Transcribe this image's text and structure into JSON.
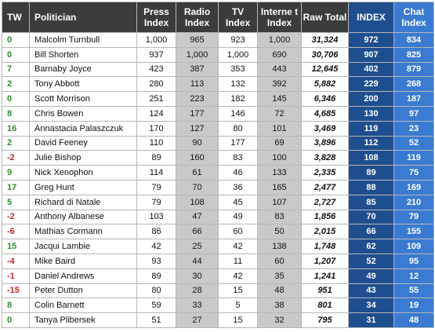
{
  "table": {
    "headers": {
      "tw": "TW",
      "politician": "Politician",
      "press": "Press Index",
      "radio": "Radio Index",
      "tv": "TV Index",
      "internet": "Interne t Index",
      "raw": "Raw Total",
      "index": "INDEX",
      "chat": "Chat Index"
    },
    "colors": {
      "header_bg": "#3c3c3c",
      "index_bg": "#1f4e8f",
      "chat_bg": "#3a7bd1",
      "grey_col": "#c9c9c9",
      "positive_tw": "#2e8b2e",
      "negative_tw": "#c62828"
    },
    "rows": [
      {
        "tw": "0",
        "name": "Malcolm Turnbull",
        "press": "1,000",
        "radio": "965",
        "tv": "923",
        "internet": "1,000",
        "raw": "31,324",
        "index": "972",
        "chat": "834"
      },
      {
        "tw": "0",
        "name": "Bill Shorten",
        "press": "937",
        "radio": "1,000",
        "tv": "1,000",
        "internet": "690",
        "raw": "30,706",
        "index": "907",
        "chat": "825"
      },
      {
        "tw": "7",
        "name": "Barnaby Joyce",
        "press": "423",
        "radio": "387",
        "tv": "353",
        "internet": "443",
        "raw": "12,645",
        "index": "402",
        "chat": "879"
      },
      {
        "tw": "2",
        "name": "Tony Abbott",
        "press": "280",
        "radio": "113",
        "tv": "132",
        "internet": "392",
        "raw": "5,882",
        "index": "229",
        "chat": "268"
      },
      {
        "tw": "0",
        "name": "Scott Morrison",
        "press": "251",
        "radio": "223",
        "tv": "182",
        "internet": "145",
        "raw": "6,346",
        "index": "200",
        "chat": "187"
      },
      {
        "tw": "8",
        "name": "Chris Bowen",
        "press": "124",
        "radio": "177",
        "tv": "146",
        "internet": "72",
        "raw": "4,685",
        "index": "130",
        "chat": "97"
      },
      {
        "tw": "16",
        "name": "Annastacia Palaszczuk",
        "press": "170",
        "radio": "127",
        "tv": "80",
        "internet": "101",
        "raw": "3,469",
        "index": "119",
        "chat": "23"
      },
      {
        "tw": "2",
        "name": "David Feeney",
        "press": "110",
        "radio": "90",
        "tv": "177",
        "internet": "69",
        "raw": "3,896",
        "index": "112",
        "chat": "52"
      },
      {
        "tw": "-2",
        "name": "Julie Bishop",
        "press": "89",
        "radio": "160",
        "tv": "83",
        "internet": "100",
        "raw": "3,828",
        "index": "108",
        "chat": "119"
      },
      {
        "tw": "9",
        "name": "Nick Xenophon",
        "press": "114",
        "radio": "61",
        "tv": "46",
        "internet": "133",
        "raw": "2,335",
        "index": "89",
        "chat": "75"
      },
      {
        "tw": "17",
        "name": "Greg Hunt",
        "press": "79",
        "radio": "70",
        "tv": "36",
        "internet": "165",
        "raw": "2,477",
        "index": "88",
        "chat": "169"
      },
      {
        "tw": "5",
        "name": "Richard di Natale",
        "press": "79",
        "radio": "108",
        "tv": "45",
        "internet": "107",
        "raw": "2,727",
        "index": "85",
        "chat": "210"
      },
      {
        "tw": "-2",
        "name": "Anthony Albanese",
        "press": "103",
        "radio": "47",
        "tv": "49",
        "internet": "83",
        "raw": "1,856",
        "index": "70",
        "chat": "79"
      },
      {
        "tw": "-6",
        "name": "Mathias Cormann",
        "press": "86",
        "radio": "66",
        "tv": "60",
        "internet": "50",
        "raw": "2,015",
        "index": "66",
        "chat": "155"
      },
      {
        "tw": "15",
        "name": "Jacqui Lambie",
        "press": "42",
        "radio": "25",
        "tv": "42",
        "internet": "138",
        "raw": "1,748",
        "index": "62",
        "chat": "109"
      },
      {
        "tw": "-4",
        "name": "Mike Baird",
        "press": "93",
        "radio": "44",
        "tv": "11",
        "internet": "60",
        "raw": "1,207",
        "index": "52",
        "chat": "95"
      },
      {
        "tw": "-1",
        "name": "Daniel Andrews",
        "press": "89",
        "radio": "30",
        "tv": "42",
        "internet": "35",
        "raw": "1,241",
        "index": "49",
        "chat": "12"
      },
      {
        "tw": "-15",
        "name": "Peter Dutton",
        "press": "80",
        "radio": "28",
        "tv": "15",
        "internet": "48",
        "raw": "951",
        "index": "43",
        "chat": "55"
      },
      {
        "tw": "8",
        "name": "Colin Barnett",
        "press": "59",
        "radio": "33",
        "tv": "5",
        "internet": "38",
        "raw": "801",
        "index": "34",
        "chat": "19"
      },
      {
        "tw": "0",
        "name": "Tanya Plibersek",
        "press": "51",
        "radio": "27",
        "tv": "15",
        "internet": "32",
        "raw": "795",
        "index": "31",
        "chat": "48"
      }
    ]
  }
}
